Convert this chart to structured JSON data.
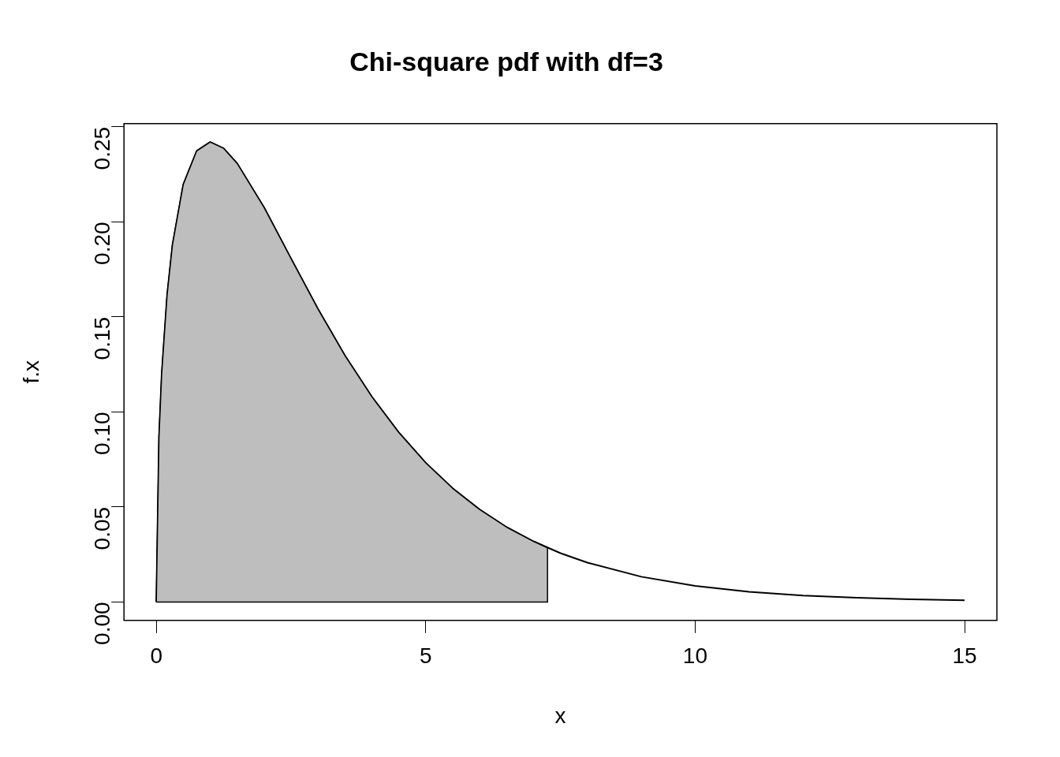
{
  "chart_data": {
    "type": "line",
    "title": "Chi-square pdf with df=3",
    "xlabel": "x",
    "ylabel": "f.x",
    "xlim": [
      -0.6,
      15.6
    ],
    "ylim": [
      -0.0097,
      0.2517
    ],
    "xticks": [
      0,
      5,
      10,
      15
    ],
    "yticks": [
      {
        "value": 0,
        "label": "0.00"
      },
      {
        "value": 0.05,
        "label": "0.05"
      },
      {
        "value": 0.1,
        "label": "0.10"
      },
      {
        "value": 0.15,
        "label": "0.15"
      },
      {
        "value": 0.2,
        "label": "0.20"
      },
      {
        "value": 0.25,
        "label": "0.25"
      }
    ],
    "grid": false,
    "legend": false,
    "series": [
      {
        "type": "area",
        "color": "#bebebe",
        "x": [
          0,
          0.05,
          0.1,
          0.2,
          0.3,
          0.5,
          0.75,
          1,
          1.25,
          1.5,
          2,
          2.5,
          3,
          3.5,
          4,
          4.5,
          5,
          5.5,
          6,
          6.5,
          7,
          7.26,
          7.26
        ],
        "values": [
          0,
          0.087,
          0.12,
          0.1614,
          0.188,
          0.2197,
          0.2374,
          0.242,
          0.2387,
          0.2308,
          0.2076,
          0.1807,
          0.1542,
          0.1297,
          0.108,
          0.0892,
          0.0732,
          0.0598,
          0.0487,
          0.0394,
          0.0319,
          0.0285,
          0
        ]
      },
      {
        "type": "line",
        "color": "#000000",
        "x": [
          0,
          0.05,
          0.1,
          0.2,
          0.3,
          0.5,
          0.75,
          1,
          1.25,
          1.5,
          2,
          2.5,
          3,
          3.5,
          4,
          4.5,
          5,
          5.5,
          6,
          6.5,
          7,
          7.5,
          8,
          9,
          10,
          11,
          12,
          13,
          14,
          15
        ],
        "values": [
          0,
          0.087,
          0.12,
          0.1614,
          0.188,
          0.2197,
          0.2374,
          0.242,
          0.2387,
          0.2308,
          0.2076,
          0.1807,
          0.1542,
          0.1297,
          0.108,
          0.0892,
          0.0732,
          0.0598,
          0.0487,
          0.0394,
          0.0319,
          0.0257,
          0.0207,
          0.0133,
          0.0085,
          0.0054,
          0.0034,
          0.0022,
          0.0014,
          0.0009
        ]
      }
    ]
  }
}
